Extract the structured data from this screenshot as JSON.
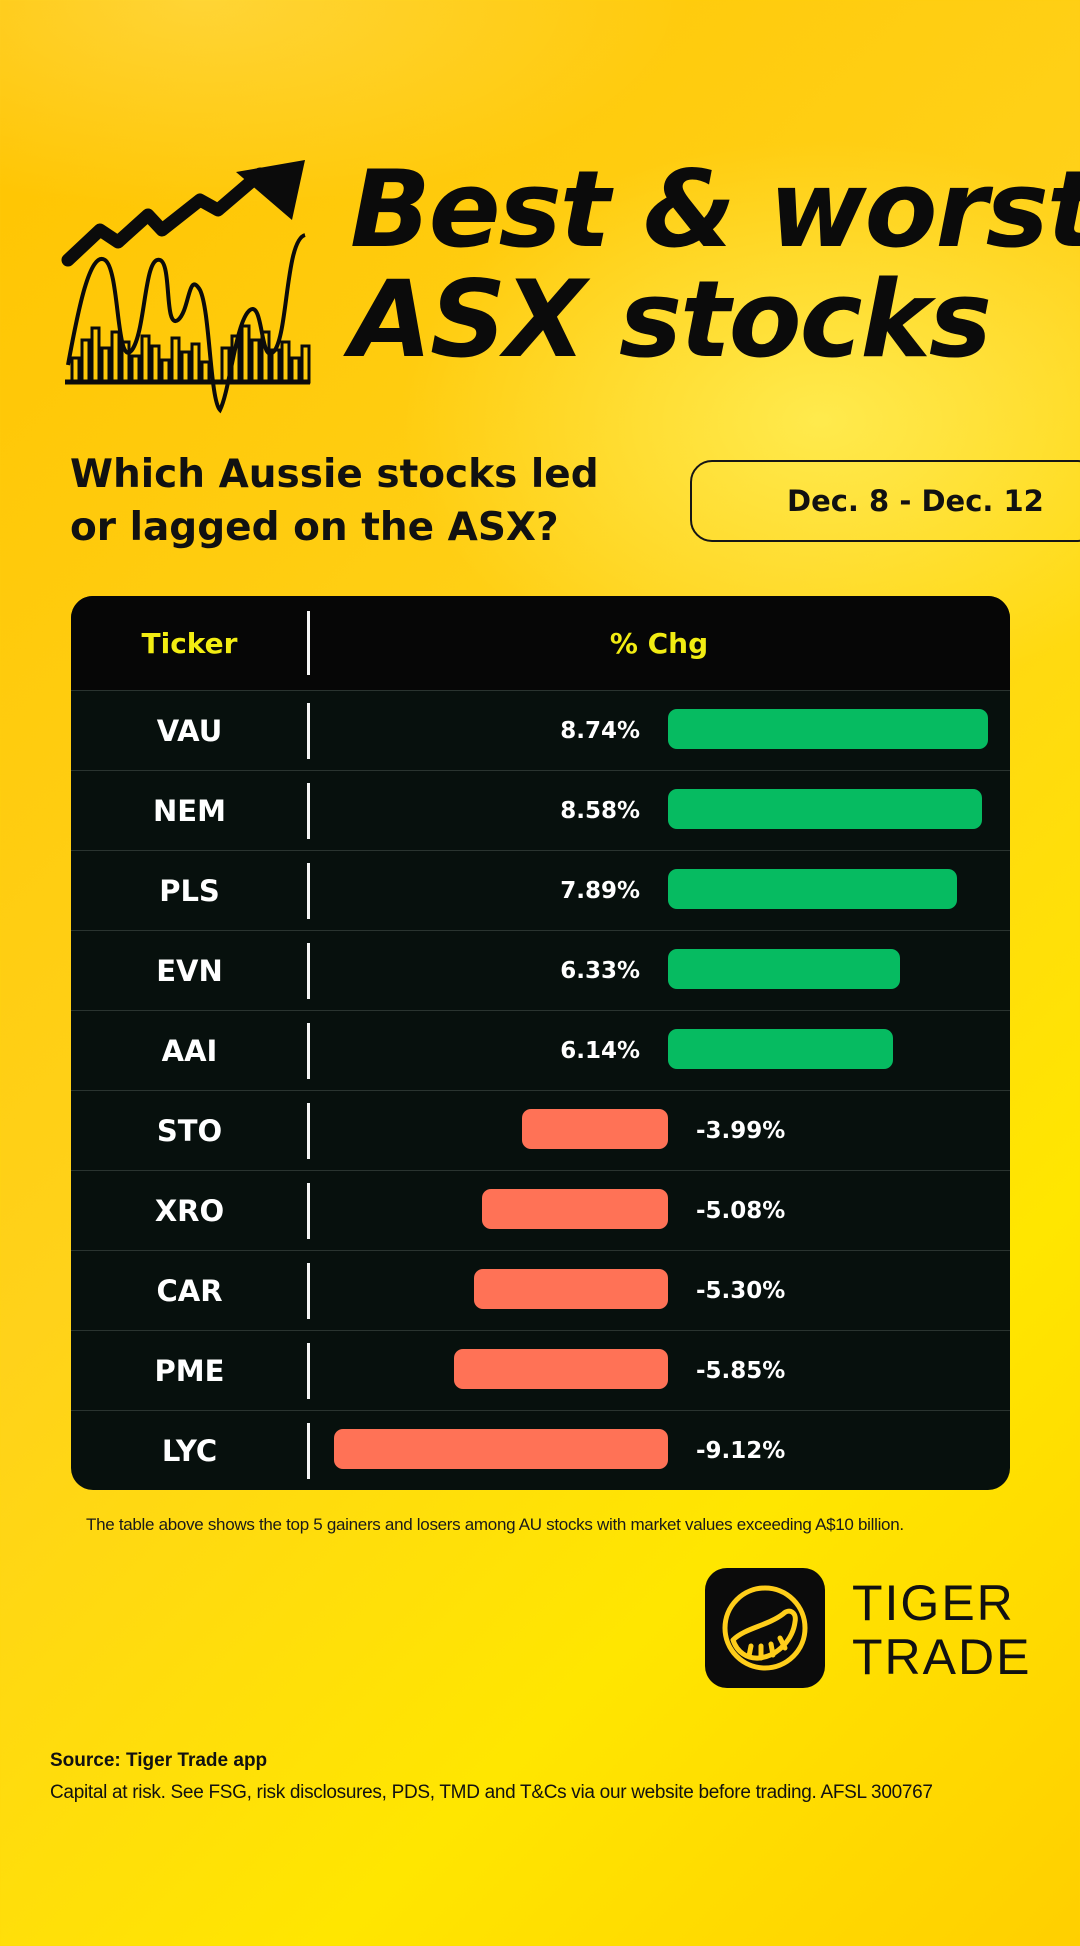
{
  "header": {
    "title_line1": "Best & worst",
    "title_line2": "ASX stocks",
    "subtitle_line1": "Which Aussie stocks led",
    "subtitle_line2": "or lagged on the ASX?",
    "date_range": "Dec. 8 - Dec. 12",
    "icon": "stock-chart-trend-arrow-icon"
  },
  "table": {
    "col_ticker": "Ticker",
    "col_change": "% Chg"
  },
  "chart_data": {
    "type": "bar",
    "orientation": "horizontal",
    "categories": [
      "VAU",
      "NEM",
      "PLS",
      "EVN",
      "AAI",
      "STO",
      "XRO",
      "CAR",
      "PME",
      "LYC"
    ],
    "values": [
      8.74,
      8.58,
      7.89,
      6.33,
      6.14,
      -3.99,
      -5.08,
      -5.3,
      -5.85,
      -9.12
    ],
    "labels": [
      "8.74%",
      "8.58%",
      "7.89%",
      "6.33%",
      "6.14%",
      "-3.99%",
      "-5.08%",
      "-5.30%",
      "-5.85%",
      "-9.12%"
    ],
    "xlabel": "% Chg",
    "ylabel": "Ticker",
    "xlim": [
      -9.12,
      8.74
    ],
    "grid": false,
    "colors": {
      "positive": "#06bb61",
      "negative": "#ff7256",
      "header_text": "#f2ec12",
      "panel": "#07100d"
    }
  },
  "footnote": "The table above shows the top 5 gainers and losers among AU stocks with market values exceeding A$10 billion.",
  "brand": {
    "name_line1": "TIGER",
    "name_line2": "TRADE",
    "icon": "tiger-trade-logo-icon"
  },
  "footer": {
    "source": "Source: Tiger Trade app",
    "disclaimer": "Capital at risk. See FSG, risk disclosures, PDS, TMD and T&Cs via our website before trading. AFSL 300767"
  }
}
